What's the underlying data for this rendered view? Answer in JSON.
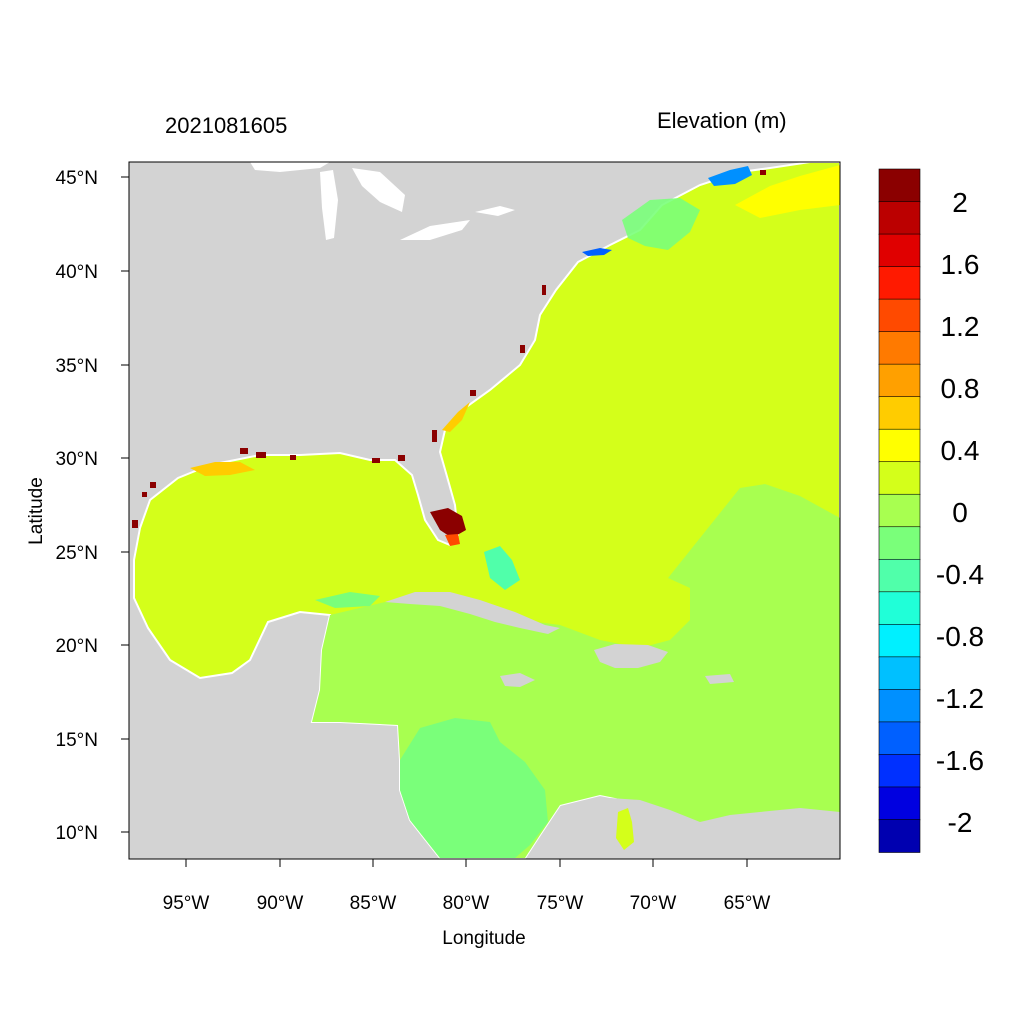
{
  "title": {
    "time": "2021081605",
    "variable": "Elevation (m)"
  },
  "axes": {
    "xlabel": "Longitude",
    "ylabel": "Latitude",
    "x_ticks": [
      "95°W",
      "90°W",
      "85°W",
      "80°W",
      "75°W",
      "70°W",
      "65°W"
    ],
    "y_ticks": [
      "45°N",
      "40°N",
      "35°N",
      "30°N",
      "25°N",
      "20°N",
      "15°N",
      "10°N"
    ]
  },
  "map": {
    "region": "Gulf of Mexico, Caribbean Sea and western North Atlantic",
    "land_color": "#d3d3d3",
    "water_boundary_color": "#ffffff"
  },
  "colorbar": {
    "labels": [
      "2",
      "1.6",
      "1.2",
      "0.8",
      "0.4",
      "0",
      "-0.4",
      "-0.8",
      "-1.2",
      "-1.6",
      "-2"
    ],
    "colors_top_to_bottom": [
      "#8b0000",
      "#bb0000",
      "#e00000",
      "#ff1a00",
      "#ff4a00",
      "#ff7a00",
      "#ffa000",
      "#ffcc00",
      "#ffff00",
      "#d4ff1a",
      "#a8ff50",
      "#7aff7a",
      "#50ffaa",
      "#20ffd8",
      "#00f0ff",
      "#00c0ff",
      "#0090ff",
      "#0060ff",
      "#0030ff",
      "#0000e0",
      "#0000b0"
    ]
  }
}
